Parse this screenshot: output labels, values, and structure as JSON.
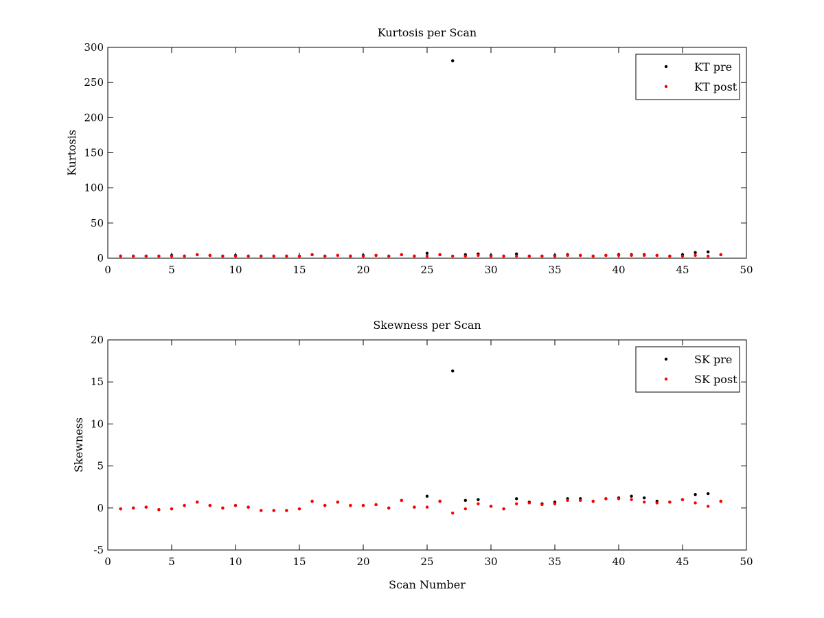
{
  "chart_data": [
    {
      "type": "scatter",
      "title": "Kurtosis per Scan",
      "xlabel": "",
      "ylabel": "Kurtosis",
      "xlim": [
        0,
        50
      ],
      "ylim": [
        0,
        300
      ],
      "xticks": [
        0,
        5,
        10,
        15,
        20,
        25,
        30,
        35,
        40,
        45,
        50
      ],
      "yticks": [
        0,
        50,
        100,
        150,
        200,
        250,
        300
      ],
      "grid": false,
      "legend_position": "top-right",
      "series": [
        {
          "name": "KT pre",
          "color": "#000000",
          "x": [
            1,
            2,
            3,
            4,
            5,
            6,
            7,
            8,
            9,
            10,
            11,
            12,
            13,
            14,
            15,
            16,
            17,
            18,
            19,
            20,
            21,
            22,
            23,
            24,
            25,
            26,
            27,
            28,
            29,
            30,
            31,
            32,
            33,
            34,
            35,
            36,
            37,
            38,
            39,
            40,
            41,
            42,
            43,
            44,
            45,
            46,
            47,
            48
          ],
          "y": [
            3,
            3,
            3,
            3,
            4,
            3,
            5,
            4,
            3,
            4,
            3,
            3,
            3,
            3,
            3,
            5,
            3,
            4,
            3,
            4,
            4,
            3,
            5,
            3,
            7,
            5,
            281,
            5,
            6,
            4,
            3,
            6,
            3,
            3,
            4,
            5,
            4,
            3,
            4,
            5,
            5,
            5,
            4,
            3,
            5,
            8,
            9,
            5
          ]
        },
        {
          "name": "KT post",
          "color": "#ff0000",
          "x": [
            1,
            2,
            3,
            4,
            5,
            6,
            7,
            8,
            9,
            10,
            11,
            12,
            13,
            14,
            15,
            16,
            17,
            18,
            19,
            20,
            21,
            22,
            23,
            24,
            25,
            26,
            27,
            28,
            29,
            30,
            31,
            32,
            33,
            34,
            35,
            36,
            37,
            38,
            39,
            40,
            41,
            42,
            43,
            44,
            45,
            46,
            47,
            48
          ],
          "y": [
            3,
            3,
            3,
            3,
            3,
            3,
            5,
            4,
            3,
            3,
            3,
            3,
            3,
            3,
            3,
            5,
            3,
            4,
            3,
            3,
            4,
            3,
            5,
            3,
            3,
            5,
            3,
            3,
            4,
            3,
            3,
            3,
            3,
            3,
            3,
            4,
            4,
            3,
            4,
            4,
            4,
            4,
            4,
            3,
            3,
            4,
            3,
            5
          ]
        }
      ]
    },
    {
      "type": "scatter",
      "title": "Skewness per Scan",
      "xlabel": "Scan Number",
      "ylabel": "Skewness",
      "xlim": [
        0,
        50
      ],
      "ylim": [
        -5,
        20
      ],
      "xticks": [
        0,
        5,
        10,
        15,
        20,
        25,
        30,
        35,
        40,
        45,
        50
      ],
      "yticks": [
        -5,
        0,
        5,
        10,
        15,
        20
      ],
      "grid": false,
      "legend_position": "top-right",
      "series": [
        {
          "name": "SK pre",
          "color": "#000000",
          "x": [
            1,
            2,
            3,
            4,
            5,
            6,
            7,
            8,
            9,
            10,
            11,
            12,
            13,
            14,
            15,
            16,
            17,
            18,
            19,
            20,
            21,
            22,
            23,
            24,
            25,
            26,
            27,
            28,
            29,
            30,
            31,
            32,
            33,
            34,
            35,
            36,
            37,
            38,
            39,
            40,
            41,
            42,
            43,
            44,
            45,
            46,
            47,
            48
          ],
          "y": [
            -0.1,
            0.0,
            0.1,
            -0.2,
            -0.1,
            0.3,
            0.7,
            0.3,
            0.0,
            0.3,
            0.1,
            -0.3,
            -0.3,
            -0.3,
            -0.1,
            0.8,
            0.3,
            0.7,
            0.3,
            0.3,
            0.4,
            0.0,
            0.9,
            0.1,
            1.4,
            0.8,
            16.3,
            0.9,
            1.0,
            0.2,
            -0.1,
            1.1,
            0.7,
            0.5,
            0.7,
            1.1,
            1.1,
            0.8,
            1.1,
            1.2,
            1.4,
            1.2,
            0.8,
            0.7,
            1.0,
            1.6,
            1.7,
            0.8
          ]
        },
        {
          "name": "SK post",
          "color": "#ff0000",
          "x": [
            1,
            2,
            3,
            4,
            5,
            6,
            7,
            8,
            9,
            10,
            11,
            12,
            13,
            14,
            15,
            16,
            17,
            18,
            19,
            20,
            21,
            22,
            23,
            24,
            25,
            26,
            27,
            28,
            29,
            30,
            31,
            32,
            33,
            34,
            35,
            36,
            37,
            38,
            39,
            40,
            41,
            42,
            43,
            44,
            45,
            46,
            47,
            48
          ],
          "y": [
            -0.1,
            0.0,
            0.1,
            -0.2,
            -0.1,
            0.3,
            0.7,
            0.3,
            0.0,
            0.3,
            0.1,
            -0.3,
            -0.3,
            -0.3,
            -0.1,
            0.8,
            0.3,
            0.7,
            0.3,
            0.3,
            0.4,
            0.0,
            0.9,
            0.1,
            0.1,
            0.8,
            -0.6,
            -0.1,
            0.5,
            0.2,
            -0.1,
            0.5,
            0.6,
            0.4,
            0.5,
            0.9,
            0.9,
            0.8,
            1.1,
            1.1,
            1.0,
            0.7,
            0.6,
            0.7,
            1.0,
            0.6,
            0.2,
            0.8
          ]
        }
      ]
    }
  ]
}
